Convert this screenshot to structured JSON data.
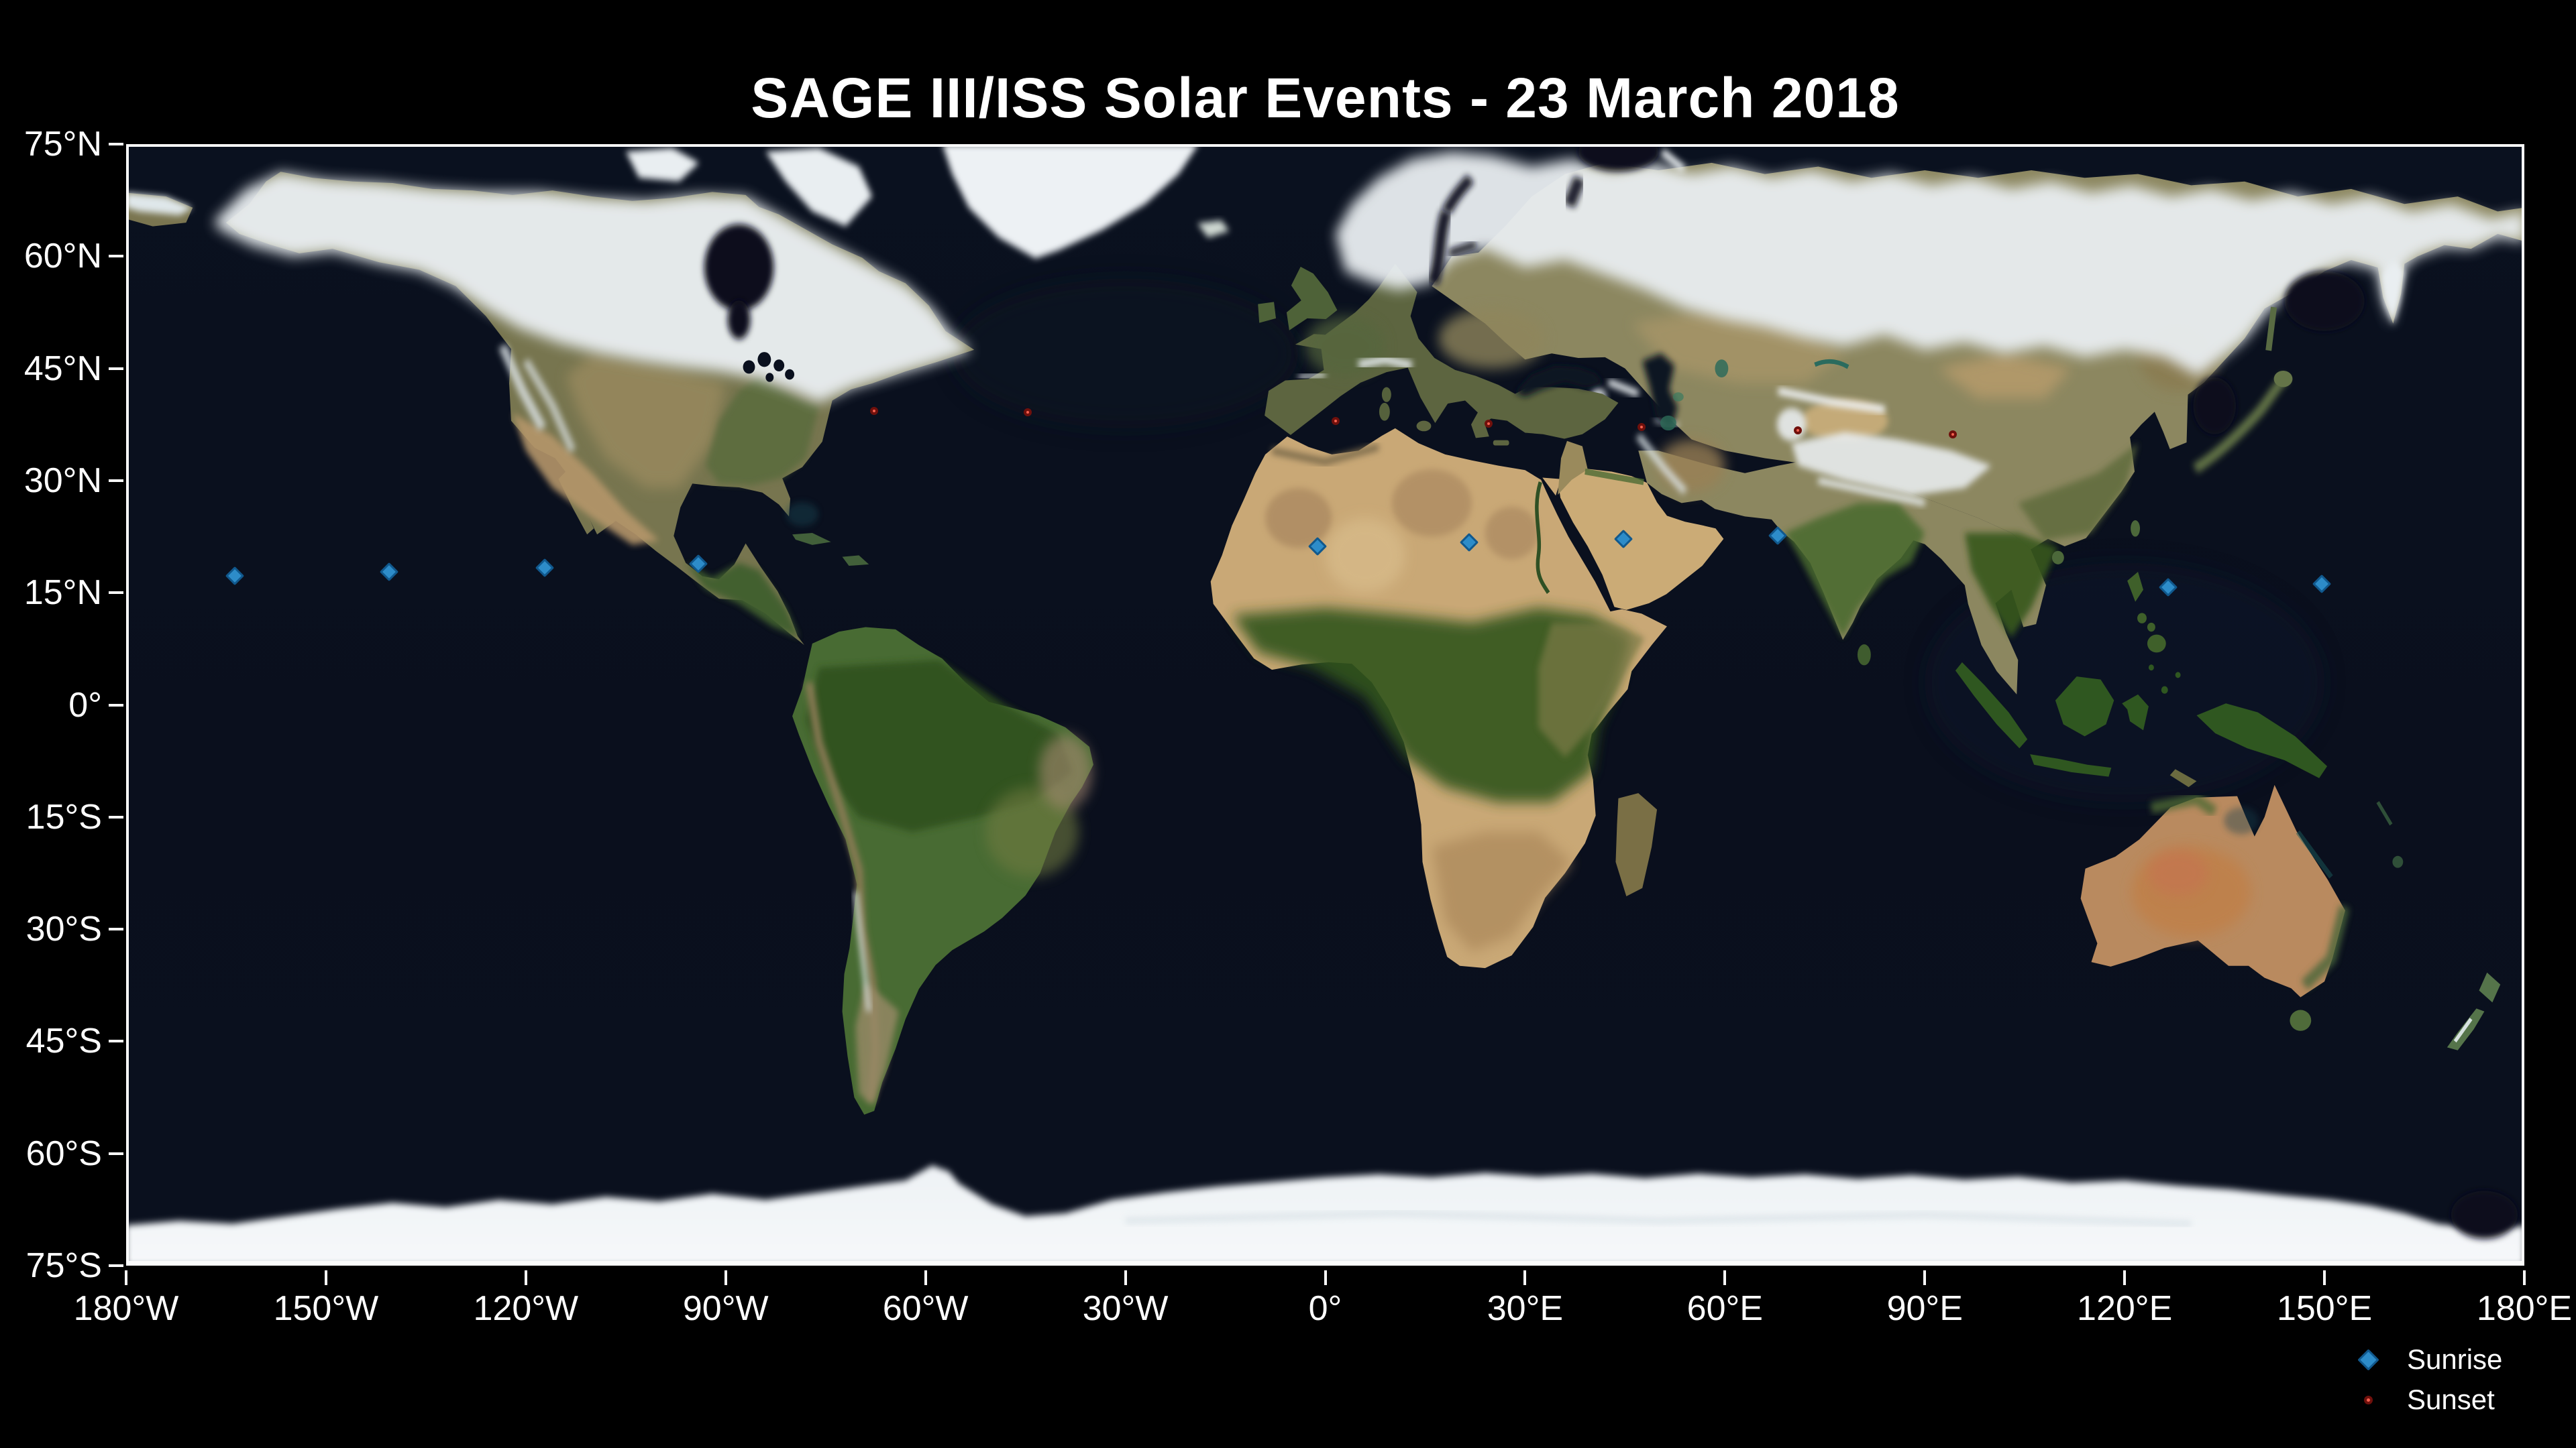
{
  "chart_data": {
    "type": "scatter",
    "projection": "equirectangular",
    "title": "SAGE III/ISS Solar Events - 23 March 2018",
    "grid": false,
    "legend_position": "lower right",
    "x_axis": {
      "range": [
        -180,
        180
      ],
      "ticks": [
        {
          "label": "180°W",
          "value": -180
        },
        {
          "label": "150°W",
          "value": -150
        },
        {
          "label": "120°W",
          "value": -120
        },
        {
          "label": "90°W",
          "value": -90
        },
        {
          "label": "60°W",
          "value": -60
        },
        {
          "label": "30°W",
          "value": -30
        },
        {
          "label": "0°",
          "value": 0
        },
        {
          "label": "30°E",
          "value": 30
        },
        {
          "label": "60°E",
          "value": 60
        },
        {
          "label": "90°E",
          "value": 90
        },
        {
          "label": "120°E",
          "value": 120
        },
        {
          "label": "150°E",
          "value": 150
        },
        {
          "label": "180°E",
          "value": 180
        }
      ]
    },
    "y_axis": {
      "range": [
        -75,
        75
      ],
      "ticks": [
        {
          "label": "75°N",
          "value": 75
        },
        {
          "label": "60°N",
          "value": 60
        },
        {
          "label": "45°N",
          "value": 45
        },
        {
          "label": "30°N",
          "value": 30
        },
        {
          "label": "15°N",
          "value": 15
        },
        {
          "label": "0°",
          "value": 0
        },
        {
          "label": "15°S",
          "value": -15
        },
        {
          "label": "30°S",
          "value": -30
        },
        {
          "label": "45°S",
          "value": -45
        },
        {
          "label": "60°S",
          "value": -60
        },
        {
          "label": "75°S",
          "value": -75
        }
      ]
    },
    "series": [
      {
        "name": "Sunrise",
        "marker": "diamond",
        "color": "#2d8cc9",
        "edge_color": "#10588d",
        "points": [
          {
            "lon": -163.7,
            "lat": 17.3
          },
          {
            "lon": -140.5,
            "lat": 17.8
          },
          {
            "lon": -117.2,
            "lat": 18.3
          },
          {
            "lon": -94.1,
            "lat": 18.9
          },
          {
            "lon": -1.2,
            "lat": 21.2
          },
          {
            "lon": 21.6,
            "lat": 21.7
          },
          {
            "lon": 44.8,
            "lat": 22.2
          },
          {
            "lon": 67.9,
            "lat": 22.6
          },
          {
            "lon": 126.5,
            "lat": 15.7
          },
          {
            "lon": 149.6,
            "lat": 16.2
          }
        ]
      },
      {
        "name": "Sunset",
        "marker": "circle",
        "color": "#f4604f",
        "edge_color": "#70100c",
        "points": [
          {
            "lon": -67.7,
            "lat": 39.3
          },
          {
            "lon": -44.7,
            "lat": 39.1
          },
          {
            "lon": 1.6,
            "lat": 38.0
          },
          {
            "lon": 24.5,
            "lat": 37.6
          },
          {
            "lon": 47.5,
            "lat": 37.2
          },
          {
            "lon": 70.9,
            "lat": 36.7
          },
          {
            "lon": 94.2,
            "lat": 36.2
          }
        ]
      }
    ]
  },
  "style": {
    "background": "#000000",
    "text_color": "#ffffff",
    "frame_color": "#fbfbfb",
    "ocean_color": "#0a101e"
  }
}
